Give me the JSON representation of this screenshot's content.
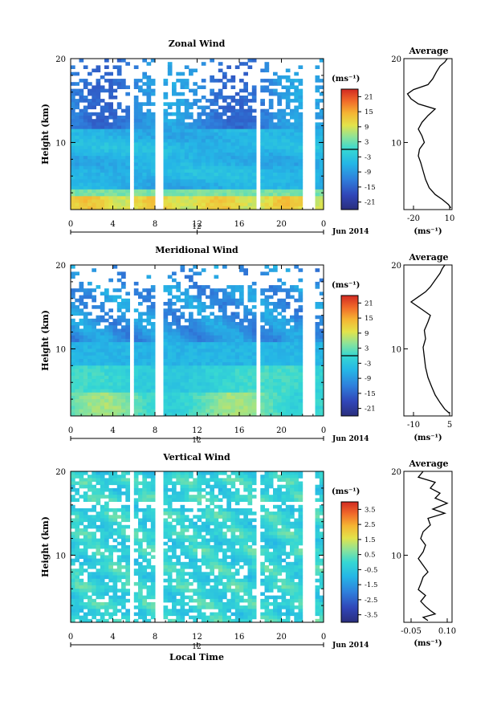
{
  "chart_data": [
    {
      "type": "heatmap",
      "title": "Zonal Wind",
      "ylabel": "Height (km)",
      "x_ticks": [
        "0",
        "4",
        "8",
        "12",
        "16",
        "20",
        "0"
      ],
      "y_ticks": [
        "20",
        "10"
      ],
      "date_tick": "12",
      "date_label": "Jun 2014",
      "xlim": [
        0,
        24
      ],
      "ylim": [
        2,
        20
      ],
      "colorbar": {
        "unit": "(ms⁻¹)",
        "ticks": [
          "21",
          "15",
          "9",
          "3",
          "-3",
          "-9",
          "-15",
          "-21"
        ],
        "range": [
          -24,
          24
        ]
      },
      "profile": {
        "title": "Average",
        "xlabel": "(ms⁻¹)",
        "x_ticks": [
          "-20",
          "10"
        ],
        "y_ticks": [
          "20",
          "10"
        ],
        "xlim": [
          -28,
          12
        ],
        "points": [
          [
            11,
            2.2
          ],
          [
            9,
            2.6
          ],
          [
            4,
            3.2
          ],
          [
            -2,
            3.8
          ],
          [
            -7,
            4.6
          ],
          [
            -10,
            5.6
          ],
          [
            -12,
            6.6
          ],
          [
            -14,
            7.6
          ],
          [
            -16,
            8.4
          ],
          [
            -15,
            9.2
          ],
          [
            -11,
            10.0
          ],
          [
            -13,
            10.8
          ],
          [
            -16,
            11.6
          ],
          [
            -13,
            12.4
          ],
          [
            -8,
            13.2
          ],
          [
            -2,
            14.0
          ],
          [
            -16,
            14.6
          ],
          [
            -22,
            15.2
          ],
          [
            -25,
            15.8
          ],
          [
            -20,
            16.3
          ],
          [
            -8,
            16.9
          ],
          [
            -4,
            17.6
          ],
          [
            -1,
            18.4
          ],
          [
            2,
            19.1
          ],
          [
            6,
            19.6
          ],
          [
            8,
            20.0
          ]
        ]
      }
    },
    {
      "type": "heatmap",
      "title": "Meridional Wind",
      "ylabel": "Height (km)",
      "x_ticks": [
        "0",
        "4",
        "8",
        "12",
        "16",
        "20",
        "0"
      ],
      "y_ticks": [
        "20",
        "10"
      ],
      "date_tick": "12",
      "date_label": "Jun 2014",
      "xlim": [
        0,
        24
      ],
      "ylim": [
        2,
        20
      ],
      "colorbar": {
        "unit": "(ms⁻¹)",
        "ticks": [
          "21",
          "15",
          "9",
          "3",
          "-3",
          "-9",
          "-15",
          "-21"
        ],
        "range": [
          -24,
          24
        ]
      },
      "profile": {
        "title": "Average",
        "xlabel": "(ms⁻¹)",
        "x_ticks": [
          "-10",
          "5"
        ],
        "y_ticks": [
          "20",
          "10"
        ],
        "xlim": [
          -14,
          6
        ],
        "points": [
          [
            5,
            2.3
          ],
          [
            3,
            2.8
          ],
          [
            1,
            3.6
          ],
          [
            -1,
            4.5
          ],
          [
            -2.5,
            5.5
          ],
          [
            -4,
            6.6
          ],
          [
            -5,
            7.8
          ],
          [
            -5.5,
            9.0
          ],
          [
            -6,
            10.2
          ],
          [
            -5,
            11.2
          ],
          [
            -5.5,
            12.2
          ],
          [
            -4,
            13.2
          ],
          [
            -3,
            14.0
          ],
          [
            -6,
            14.6
          ],
          [
            -9,
            15.2
          ],
          [
            -11,
            15.6
          ],
          [
            -8,
            16.2
          ],
          [
            -5,
            16.8
          ],
          [
            -3,
            17.4
          ],
          [
            -1,
            18.2
          ],
          [
            1,
            19.0
          ],
          [
            2,
            19.6
          ],
          [
            3,
            20.0
          ]
        ]
      }
    },
    {
      "type": "heatmap",
      "title": "Vertical Wind",
      "ylabel": "Height (km)",
      "xlabel": "Local Time",
      "x_ticks": [
        "0",
        "4",
        "8",
        "12",
        "16",
        "20",
        "0"
      ],
      "y_ticks": [
        "20",
        "10"
      ],
      "date_tick": "12",
      "date_label": "Jun 2014",
      "xlim": [
        0,
        24
      ],
      "ylim": [
        2,
        20
      ],
      "colorbar": {
        "unit": "(ms⁻¹)",
        "ticks": [
          "3.5",
          "2.5",
          "1.5",
          "0.5",
          "-0.5",
          "-1.5",
          "-2.5",
          "-3.5"
        ],
        "range": [
          -4,
          4
        ]
      },
      "profile": {
        "title": "Average",
        "xlabel": "(ms⁻¹)",
        "x_ticks": [
          "-0.05",
          "0.10"
        ],
        "y_ticks": [
          "20",
          "10"
        ],
        "xlim": [
          -0.08,
          0.12
        ],
        "points": [
          [
            0.02,
            2.2
          ],
          [
            0.0,
            2.6
          ],
          [
            0.05,
            3.0
          ],
          [
            0.03,
            3.4
          ],
          [
            0.01,
            3.9
          ],
          [
            -0.01,
            4.5
          ],
          [
            0.01,
            5.2
          ],
          [
            -0.02,
            5.9
          ],
          [
            -0.01,
            6.6
          ],
          [
            0.0,
            7.4
          ],
          [
            0.02,
            8.0
          ],
          [
            0.0,
            8.8
          ],
          [
            -0.02,
            9.6
          ],
          [
            0.0,
            10.4
          ],
          [
            0.01,
            11.2
          ],
          [
            -0.01,
            12.0
          ],
          [
            0.0,
            12.8
          ],
          [
            0.03,
            13.6
          ],
          [
            0.02,
            14.4
          ],
          [
            0.09,
            15.0
          ],
          [
            0.04,
            15.5
          ],
          [
            0.1,
            16.2
          ],
          [
            0.05,
            16.8
          ],
          [
            0.07,
            17.4
          ],
          [
            0.03,
            18.0
          ],
          [
            0.05,
            18.7
          ],
          [
            -0.02,
            19.3
          ],
          [
            0.0,
            20.0
          ]
        ]
      }
    }
  ]
}
